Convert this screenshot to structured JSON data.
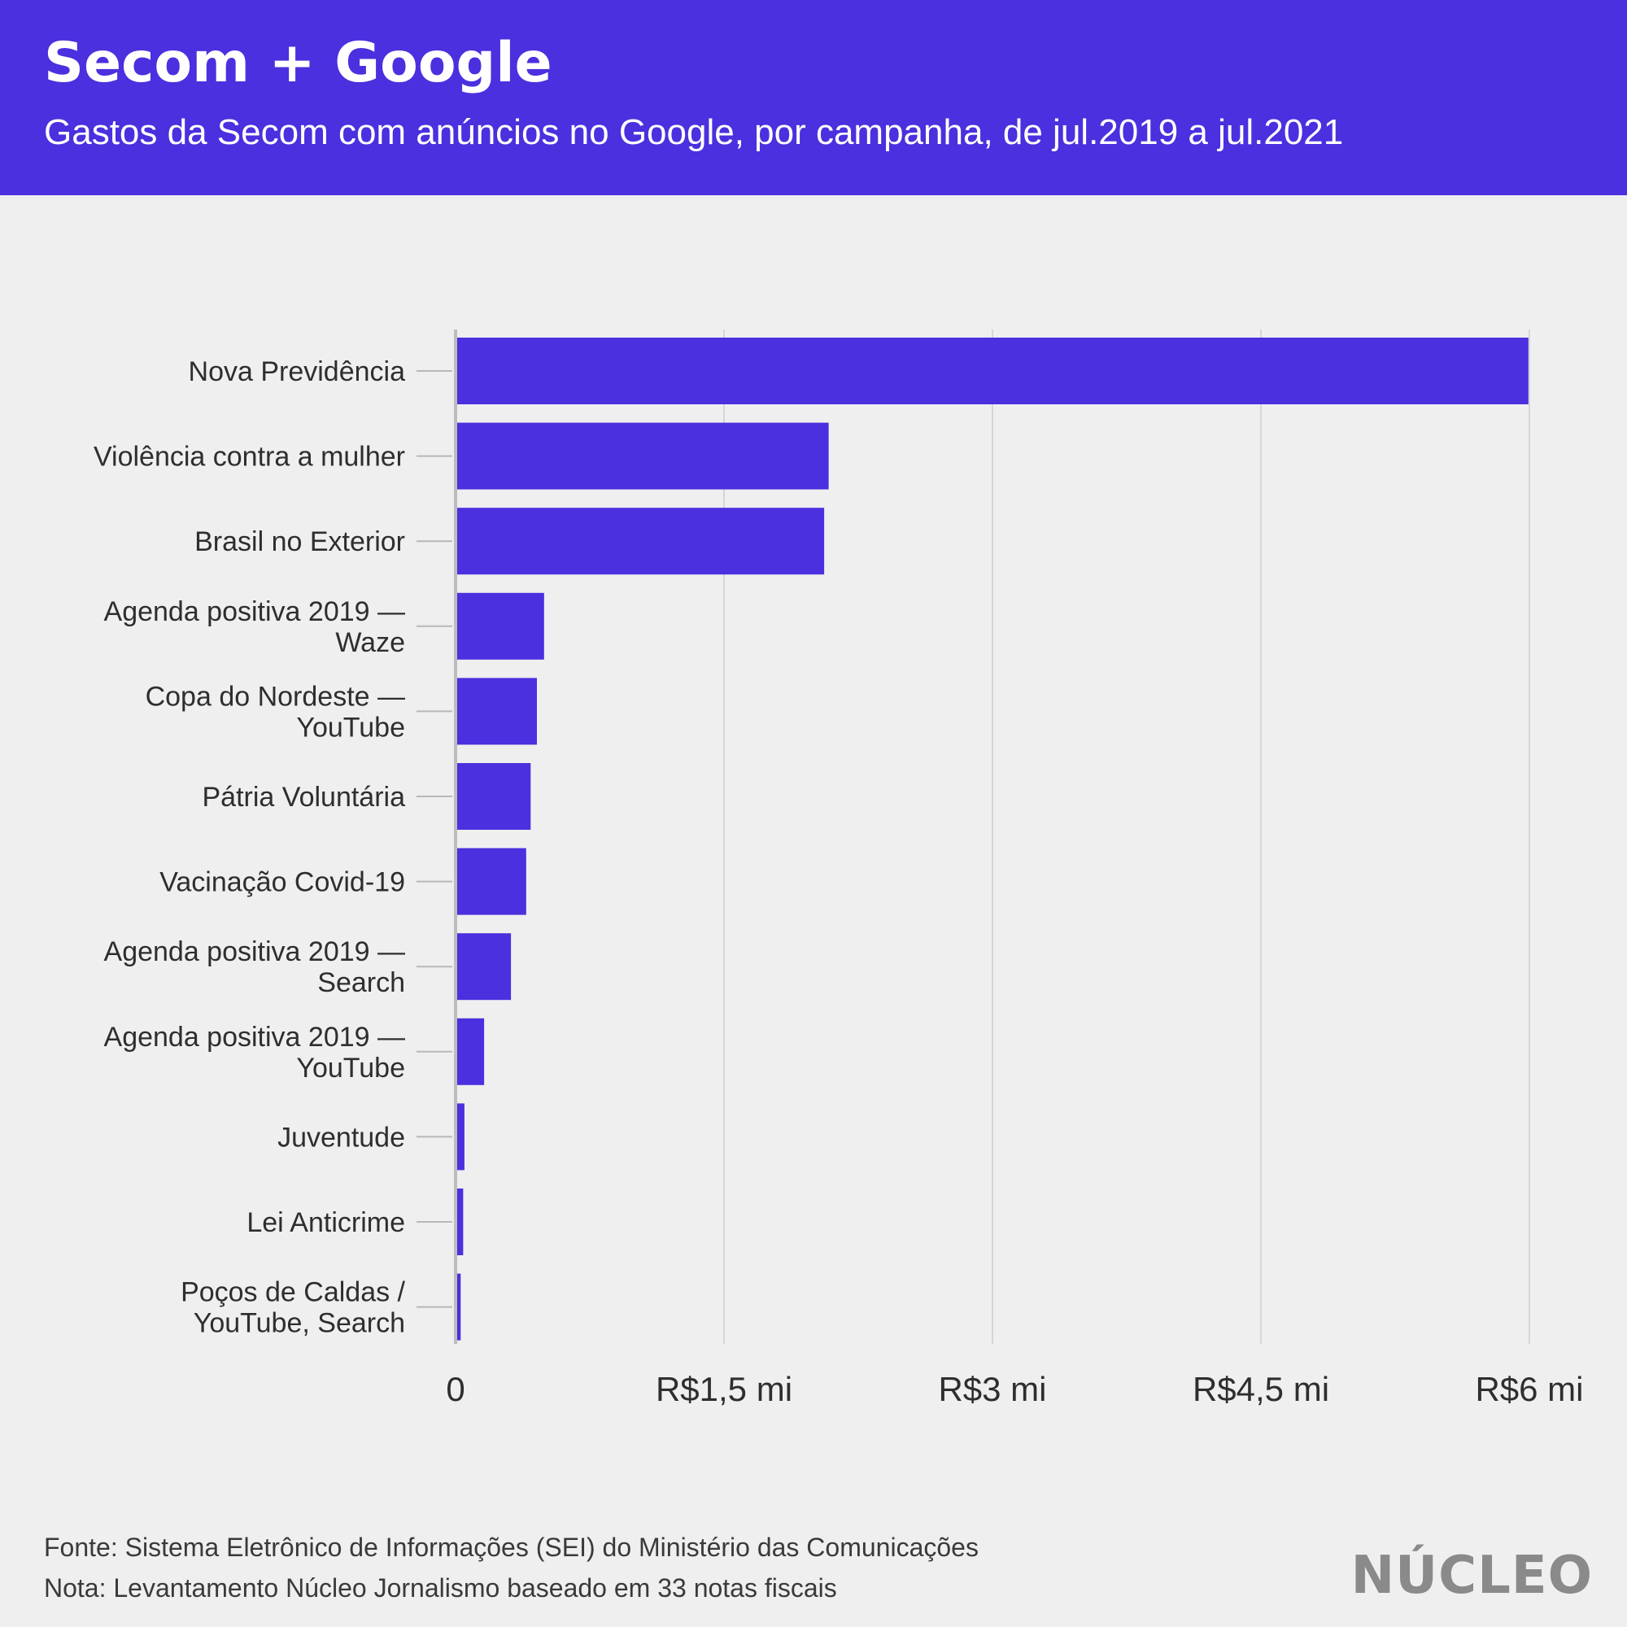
{
  "header": {
    "title": "Secom + Google",
    "subtitle": "Gastos da Secom com anúncios no Google, por campanha, de jul.2019 a jul.2021"
  },
  "chart_data": {
    "type": "bar",
    "orientation": "horizontal",
    "title": "Secom + Google",
    "subtitle": "Gastos da Secom com anúncios no Google, por campanha, de jul.2019 a jul.2021",
    "xlabel": "",
    "ylabel": "",
    "xlim": [
      0,
      6000000
    ],
    "grid": true,
    "bar_color": "#4a30de",
    "categories": [
      [
        "Nova Previdência"
      ],
      [
        "Violência contra a mulher"
      ],
      [
        "Brasil no Exterior"
      ],
      [
        "Agenda positiva 2019 —",
        "Waze"
      ],
      [
        "Copa do Nordeste —",
        "YouTube"
      ],
      [
        "Pátria Voluntária"
      ],
      [
        "Vacinação Covid-19"
      ],
      [
        "Agenda positiva 2019 —",
        "Search"
      ],
      [
        "Agenda positiva 2019 —",
        "YouTube"
      ],
      [
        "Juventude"
      ],
      [
        "Lei Anticrime"
      ],
      [
        "Poços de Caldas /",
        "YouTube, Search"
      ]
    ],
    "values": [
      5990000,
      2080000,
      2055000,
      490000,
      450000,
      415000,
      390000,
      305000,
      155000,
      45000,
      38000,
      24000
    ],
    "ticks": [
      {
        "value": 0,
        "label": "0"
      },
      {
        "value": 1500000,
        "label": "R$1,5 mi"
      },
      {
        "value": 3000000,
        "label": "R$3 mi"
      },
      {
        "value": 4500000,
        "label": "R$4,5 mi"
      },
      {
        "value": 6000000,
        "label": "R$6 mi"
      }
    ]
  },
  "footer": {
    "source": "Fonte: Sistema Eletrônico de Informações (SEI) do Ministério das Comunicações",
    "note": "Nota: Levantamento Núcleo Jornalismo baseado em 33 notas fiscais",
    "logo": "NÚCLEO"
  }
}
